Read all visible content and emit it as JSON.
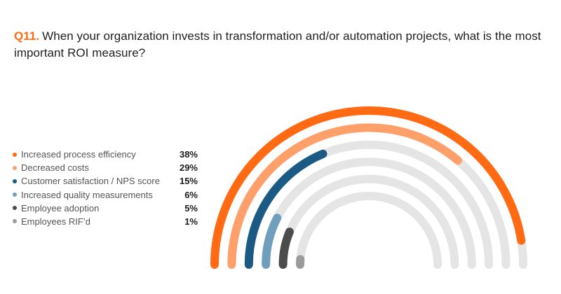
{
  "question": {
    "number": "Q11.",
    "text": "When your organization invests in transformation and/or automation projects, what is the most important ROI measure?"
  },
  "chart_data": {
    "type": "radial-bar",
    "max_value": 40,
    "track_color": "#e5e5e5",
    "legend_placement": "left",
    "series": [
      {
        "label": "Increased process efficiency",
        "display": "38%",
        "value": 38,
        "color": "#ff6a13"
      },
      {
        "label": "Decreased costs",
        "display": "29%",
        "value": 29,
        "color": "#ffa06b"
      },
      {
        "label": "Customer satisfaction / NPS score",
        "display": "15%",
        "value": 15,
        "color": "#1b5a85"
      },
      {
        "label": "Increased quality measurements",
        "display": "6%",
        "value": 6,
        "color": "#6f9fbd"
      },
      {
        "label": "Employee adoption",
        "display": "5%",
        "value": 5,
        "color": "#4c4c4c"
      },
      {
        "label": "Employees RIF’d",
        "display": "1%",
        "value": 1,
        "color": "#9b9b9b"
      }
    ]
  }
}
